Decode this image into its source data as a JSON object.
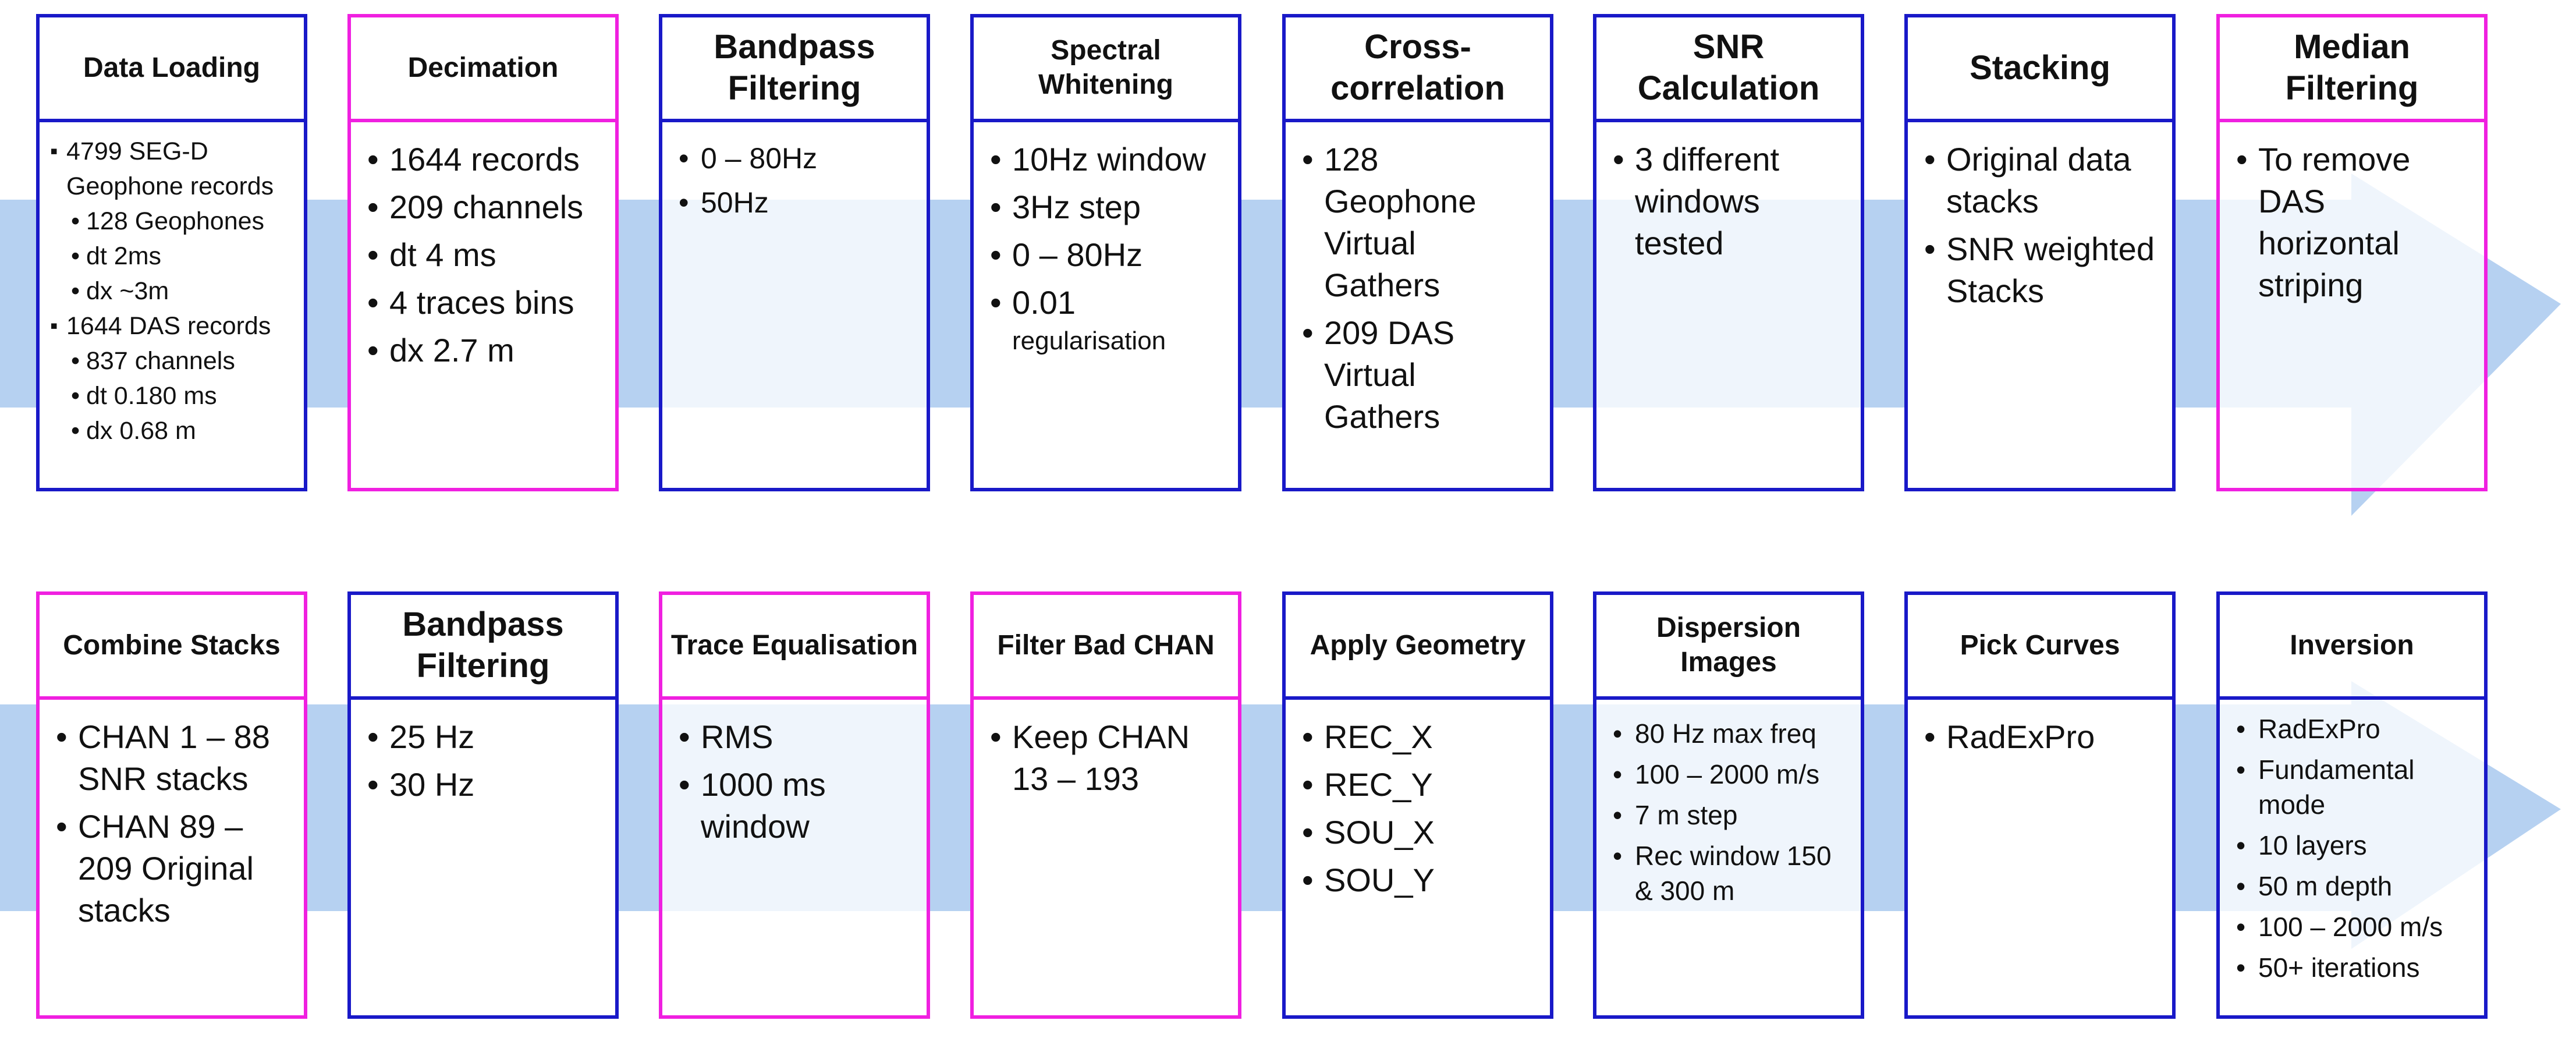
{
  "colors": {
    "stage_blue": "#1919c8",
    "stage_pink": "#f020e0",
    "flow_arrow": "#a9c9ee"
  },
  "row1": [
    {
      "title": "Data Loading",
      "border": "blue",
      "items": [
        {
          "level": 1,
          "text": "4799 SEG-D Geophone records"
        },
        {
          "level": 2,
          "text": "128 Geophones"
        },
        {
          "level": 2,
          "text": "dt 2ms"
        },
        {
          "level": 2,
          "text": "dx ~3m"
        },
        {
          "level": 1,
          "text": "1644 DAS records"
        },
        {
          "level": 2,
          "text": "837 channels"
        },
        {
          "level": 2,
          "text": "dt 0.180 ms"
        },
        {
          "level": 2,
          "text": "dx 0.68 m"
        }
      ]
    },
    {
      "title": "Decimation",
      "border": "pink",
      "items": [
        "1644 records",
        "209 channels",
        "dt 4 ms",
        "4 traces bins",
        "dx 2.7 m"
      ]
    },
    {
      "title": "Bandpass Filtering",
      "border": "blue",
      "items": [
        "0 – 80Hz",
        "50Hz"
      ]
    },
    {
      "title": "Spectral Whitening",
      "border": "blue",
      "items": [
        "10Hz window",
        "3Hz step",
        "0 – 80Hz",
        "0.01"
      ],
      "last_item_tail": "regularisation"
    },
    {
      "title": "Cross-correlation",
      "border": "blue",
      "items": [
        "128 Geophone Virtual Gathers",
        "209 DAS Virtual Gathers"
      ]
    },
    {
      "title": "SNR Calculation",
      "border": "blue",
      "items": [
        "3 different windows tested"
      ]
    },
    {
      "title": "Stacking",
      "border": "blue",
      "items": [
        "Original data stacks",
        "SNR weighted Stacks"
      ]
    },
    {
      "title": "Median Filtering",
      "border": "pink",
      "items": [
        "To remove DAS horizontal striping"
      ]
    }
  ],
  "row2": [
    {
      "title": "Combine Stacks",
      "border": "pink",
      "items": [
        "CHAN 1 – 88 SNR stacks",
        "CHAN 89 – 209 Original stacks"
      ]
    },
    {
      "title": "Bandpass Filtering",
      "border": "blue",
      "items": [
        "25 Hz",
        "30 Hz"
      ]
    },
    {
      "title": "Trace Equalisation",
      "border": "pink",
      "items": [
        "RMS",
        "1000 ms window"
      ]
    },
    {
      "title": "Filter Bad CHAN",
      "border": "pink",
      "items": [
        "Keep CHAN 13 – 193"
      ]
    },
    {
      "title": "Apply Geometry",
      "border": "blue",
      "items": [
        "REC_X",
        "REC_Y",
        "SOU_X",
        "SOU_Y"
      ]
    },
    {
      "title": "Dispersion Images",
      "border": "blue",
      "items": [
        "80 Hz max freq",
        "100 – 2000 m/s",
        "7 m step",
        "Rec window 150 & 300 m"
      ]
    },
    {
      "title": "Pick Curves",
      "border": "blue",
      "items": [
        "RadExPro"
      ]
    },
    {
      "title": "Inversion",
      "border": "blue",
      "items": [
        "RadExPro",
        "Fundamental mode",
        "10 layers",
        "50 m depth",
        "100 – 2000 m/s",
        "50+ iterations"
      ]
    }
  ]
}
